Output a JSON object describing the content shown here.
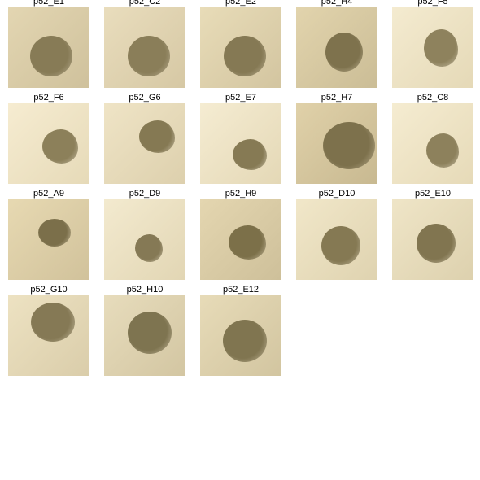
{
  "wells": [
    {
      "label": "p52_E1",
      "bg": [
        "#e3d6b2",
        "#cfc19c"
      ],
      "colony": {
        "size": "large",
        "tone": "#877b56",
        "shape": "round"
      }
    },
    {
      "label": "p52_C2",
      "bg": [
        "#e9ddbd",
        "#d6c8a4"
      ],
      "colony": {
        "size": "large",
        "tone": "#8a7e59",
        "shape": "round"
      }
    },
    {
      "label": "p52_E2",
      "bg": [
        "#e8dcb8",
        "#d3c5a0"
      ],
      "colony": {
        "size": "large",
        "tone": "#857954",
        "shape": "round"
      }
    },
    {
      "label": "p52_H4",
      "bg": [
        "#e2d4ad",
        "#cbbd96"
      ],
      "colony": {
        "size": "large",
        "tone": "#7e724d",
        "shape": "round"
      }
    },
    {
      "label": "p52_F5",
      "bg": [
        "#f4ebd0",
        "#e5d9b7"
      ],
      "colony": {
        "size": "medium",
        "tone": "#8e825d",
        "shape": "irregular"
      }
    },
    {
      "label": "p52_F6",
      "bg": [
        "#f6ecd1",
        "#e6dab8"
      ],
      "colony": {
        "size": "medium",
        "tone": "#8c805a",
        "shape": "irregular"
      }
    },
    {
      "label": "p52_G6",
      "bg": [
        "#efe4c6",
        "#ddd0ad"
      ],
      "colony": {
        "size": "medium",
        "tone": "#857953",
        "shape": "irregular"
      }
    },
    {
      "label": "p52_E7",
      "bg": [
        "#f5ecd2",
        "#e4d8b6"
      ],
      "colony": {
        "size": "medium",
        "tone": "#867a54",
        "shape": "irregular"
      }
    },
    {
      "label": "p52_H7",
      "bg": [
        "#e0d1a9",
        "#c8b991"
      ],
      "colony": {
        "size": "xlarge",
        "tone": "#7d714c",
        "shape": "round"
      }
    },
    {
      "label": "p52_C8",
      "bg": [
        "#f5ecd1",
        "#e6dab8"
      ],
      "colony": {
        "size": "medium",
        "tone": "#8d815c",
        "shape": "irregular"
      }
    },
    {
      "label": "p52_A9",
      "bg": [
        "#e7d9b2",
        "#d1c29b"
      ],
      "colony": {
        "size": "small",
        "tone": "#7b6f4a",
        "shape": "round"
      }
    },
    {
      "label": "p52_D9",
      "bg": [
        "#f3eacf",
        "#e2d6b4"
      ],
      "colony": {
        "size": "small",
        "tone": "#857955",
        "shape": "irregular"
      }
    },
    {
      "label": "p52_H9",
      "bg": [
        "#e4d6b0",
        "#cec09a"
      ],
      "colony": {
        "size": "medium",
        "tone": "#7c7049",
        "shape": "irregular"
      }
    },
    {
      "label": "p52_D10",
      "bg": [
        "#f1e7c9",
        "#dfd3b0"
      ],
      "colony": {
        "size": "large",
        "tone": "#857953",
        "shape": "round"
      }
    },
    {
      "label": "p52_E10",
      "bg": [
        "#efe5c7",
        "#ddd1ae"
      ],
      "colony": {
        "size": "large",
        "tone": "#817550",
        "shape": "round"
      }
    },
    {
      "label": "p52_G10",
      "bg": [
        "#ede2c2",
        "#dacdaa"
      ],
      "colony": {
        "size": "large",
        "tone": "#857955",
        "shape": "round"
      }
    },
    {
      "label": "p52_H10",
      "bg": [
        "#e7dcbc",
        "#d3c6a2"
      ],
      "colony": {
        "size": "large",
        "tone": "#7e7450",
        "shape": "round"
      }
    },
    {
      "label": "p52_E12",
      "bg": [
        "#e7dbb8",
        "#d2c5a0"
      ],
      "colony": {
        "size": "large",
        "tone": "#807550",
        "shape": "round"
      }
    }
  ]
}
